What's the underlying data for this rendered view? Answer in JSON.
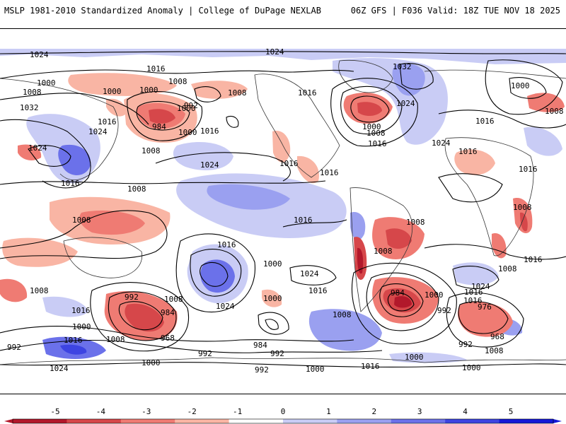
{
  "header": {
    "title": "MSLP 1981-2010 Standardized Anomaly | College of DuPage NEXLAB",
    "run_info": "06Z GFS | F036 Valid: 18Z TUE NOV 18 2025"
  },
  "colorbar": {
    "ticks": [
      "-5",
      "-4",
      "-3",
      "-2",
      "-1",
      "0",
      "1",
      "2",
      "3",
      "4",
      "5"
    ],
    "colors": [
      "#b2182b",
      "#d6474a",
      "#ef7b73",
      "#f9b5a4",
      "#ffffff",
      "#ffffff",
      "#c9ccf5",
      "#9aa0f0",
      "#6b71ea",
      "#3d44e2",
      "#1418d8"
    ]
  },
  "isobar_labels": [
    "1024",
    "1024",
    "1016",
    "1008",
    "1000",
    "1000",
    "1000",
    "1008",
    "1032",
    "1016",
    "1024",
    "1024",
    "984",
    "992",
    "1000",
    "1016",
    "1008",
    "1024",
    "1016",
    "1016",
    "1008",
    "1008",
    "1016",
    "1016",
    "1016",
    "1024",
    "1016",
    "1000",
    "1032",
    "1024",
    "1016",
    "1024",
    "1008",
    "1000",
    "1008",
    "1016",
    "1016",
    "1008",
    "1008",
    "1008",
    "1016",
    "1024",
    "1016",
    "1016",
    "1016",
    "1008",
    "1008",
    "1024",
    "1016",
    "1000",
    "1008",
    "992",
    "984",
    "968",
    "1008",
    "1000",
    "1000",
    "992",
    "984",
    "992",
    "992",
    "1000",
    "1008",
    "984",
    "1000",
    "1016",
    "992",
    "976",
    "1016",
    "968",
    "1008",
    "1000",
    "992",
    "1000",
    "1024",
    "1016",
    "992",
    "1000",
    "1000",
    "1008"
  ]
}
